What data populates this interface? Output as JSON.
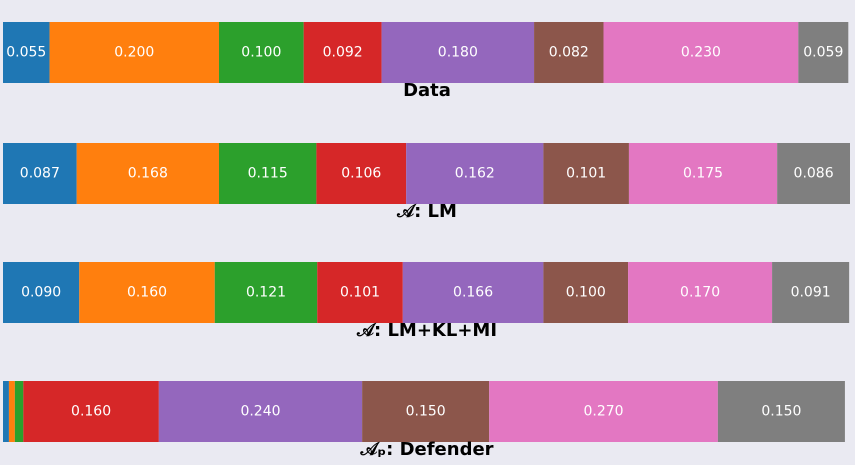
{
  "chart_data": {
    "type": "stacked_bar",
    "orientation": "horizontal",
    "categories": [
      "Data",
      "𝒜: LM",
      "𝒜: LM+KL+MI",
      "𝒜ₚ: Defender"
    ],
    "xlim": [
      0,
      1
    ],
    "series": [
      {
        "color": "#1f77b4",
        "values": [
          0.055,
          0.087,
          0.09,
          0.007
        ],
        "value_labels": [
          "0.055",
          "0.087",
          "0.090",
          null
        ]
      },
      {
        "color": "#ff7f0e",
        "values": [
          0.2,
          0.168,
          0.16,
          0.007
        ],
        "value_labels": [
          "0.200",
          "0.168",
          "0.160",
          null
        ]
      },
      {
        "color": "#2ca02c",
        "values": [
          0.1,
          0.115,
          0.121,
          0.01
        ],
        "value_labels": [
          "0.100",
          "0.115",
          "0.121",
          null
        ]
      },
      {
        "color": "#d62728",
        "values": [
          0.092,
          0.106,
          0.101,
          0.16
        ],
        "value_labels": [
          "0.092",
          "0.106",
          "0.101",
          "0.160"
        ]
      },
      {
        "color": "#9467bd",
        "values": [
          0.18,
          0.162,
          0.166,
          0.24
        ],
        "value_labels": [
          "0.180",
          "0.162",
          "0.166",
          "0.240"
        ]
      },
      {
        "color": "#8c564b",
        "values": [
          0.082,
          0.101,
          0.1,
          0.15
        ],
        "value_labels": [
          "0.082",
          "0.101",
          "0.100",
          "0.150"
        ]
      },
      {
        "color": "#e377c2",
        "values": [
          0.23,
          0.175,
          0.17,
          0.27
        ],
        "value_labels": [
          "0.230",
          "0.175",
          "0.170",
          "0.270"
        ]
      },
      {
        "color": "#7f7f7f",
        "values": [
          0.059,
          0.086,
          0.091,
          0.15
        ],
        "value_labels": [
          "0.059",
          "0.086",
          "0.091",
          "0.150"
        ]
      }
    ]
  }
}
